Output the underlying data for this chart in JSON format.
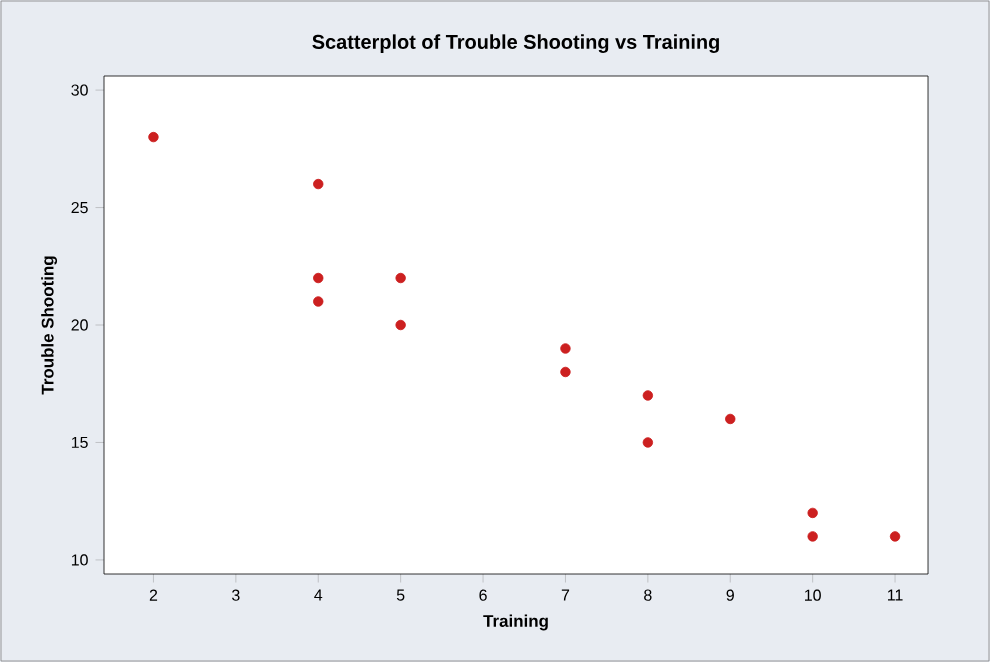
{
  "chart_data": {
    "type": "scatter",
    "title": "Scatterplot of Trouble Shooting vs Training",
    "xlabel": "Training",
    "ylabel": "Trouble Shooting",
    "x": [
      2,
      4,
      4,
      4,
      5,
      5,
      7,
      7,
      8,
      8,
      9,
      10,
      10,
      11
    ],
    "series": [
      {
        "color": "#cc2020",
        "values": [
          28,
          26,
          22,
          21,
          22,
          20,
          19,
          18,
          17,
          15,
          16,
          12,
          11,
          11
        ]
      }
    ],
    "xlim": [
      1.4,
      11.4
    ],
    "ylim": [
      9.4,
      30.6
    ],
    "xticks": [
      2,
      3,
      4,
      5,
      6,
      7,
      8,
      9,
      10,
      11
    ],
    "yticks": [
      10,
      15,
      20,
      25,
      30
    ],
    "marker": "circle",
    "grid": false
  }
}
